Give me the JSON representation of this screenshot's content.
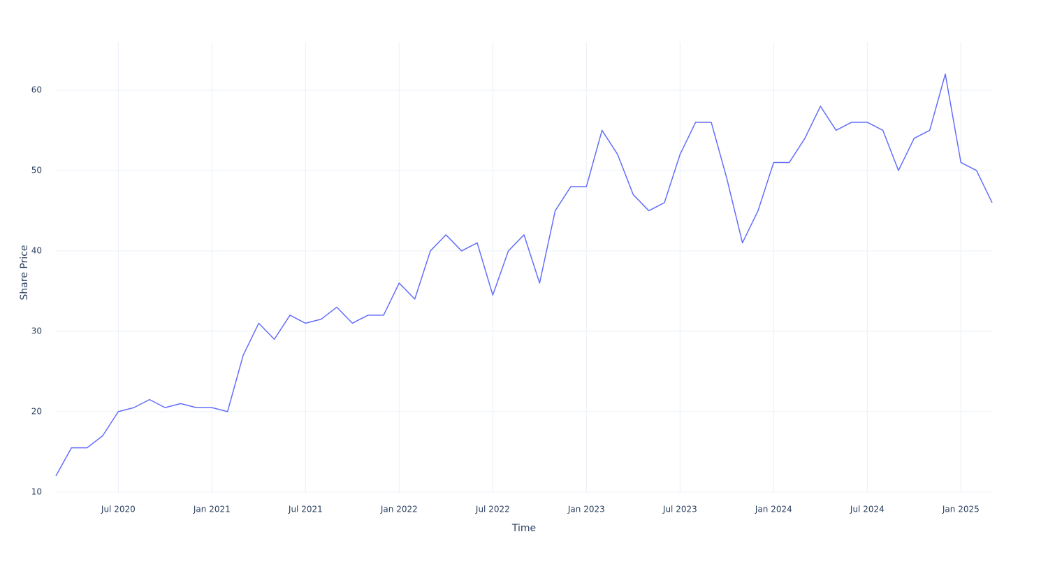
{
  "chart_data": {
    "type": "line",
    "x_label": "Time",
    "y_label": "Share Price",
    "x": [
      "2020-03",
      "2020-04",
      "2020-05",
      "2020-06",
      "2020-07",
      "2020-08",
      "2020-09",
      "2020-10",
      "2020-11",
      "2020-12",
      "2021-01",
      "2021-02",
      "2021-03",
      "2021-04",
      "2021-05",
      "2021-06",
      "2021-07",
      "2021-08",
      "2021-09",
      "2021-10",
      "2021-11",
      "2021-12",
      "2022-01",
      "2022-02",
      "2022-03",
      "2022-04",
      "2022-05",
      "2022-06",
      "2022-07",
      "2022-08",
      "2022-09",
      "2022-10",
      "2022-11",
      "2022-12",
      "2023-01",
      "2023-02",
      "2023-03",
      "2023-04",
      "2023-05",
      "2023-06",
      "2023-07",
      "2023-08",
      "2023-09",
      "2023-10",
      "2023-11",
      "2023-12",
      "2024-01",
      "2024-02",
      "2024-03",
      "2024-04",
      "2024-05",
      "2024-06",
      "2024-07",
      "2024-08",
      "2024-09",
      "2024-10",
      "2024-11",
      "2024-12",
      "2025-01",
      "2025-02",
      "2025-03"
    ],
    "values": [
      12,
      15.5,
      15.5,
      17,
      20,
      20.5,
      21.5,
      20.5,
      21,
      20.5,
      20.5,
      20,
      27,
      31,
      29,
      32,
      31,
      31.5,
      33,
      31,
      32,
      32,
      36,
      34,
      40,
      42,
      40,
      41,
      34.5,
      40,
      42,
      36,
      45,
      48,
      48,
      55,
      52,
      47,
      45,
      46,
      52,
      56,
      56,
      49,
      41,
      45,
      51,
      51,
      54,
      58,
      55,
      56,
      56,
      55,
      50,
      54,
      55,
      62,
      51,
      50,
      46
    ],
    "color": "#636efa",
    "xlim": [
      "2020-03",
      "2025-03"
    ],
    "xticks": [
      {
        "value": "2020-07",
        "label": "Jul 2020"
      },
      {
        "value": "2021-01",
        "label": "Jan 2021"
      },
      {
        "value": "2021-07",
        "label": "Jul 2021"
      },
      {
        "value": "2022-01",
        "label": "Jan 2022"
      },
      {
        "value": "2022-07",
        "label": "Jul 2022"
      },
      {
        "value": "2023-01",
        "label": "Jan 2023"
      },
      {
        "value": "2023-07",
        "label": "Jul 2023"
      },
      {
        "value": "2024-01",
        "label": "Jan 2024"
      },
      {
        "value": "2024-07",
        "label": "Jul 2024"
      },
      {
        "value": "2025-01",
        "label": "Jan 2025"
      }
    ],
    "ylim": [
      9.9,
      66
    ],
    "yticks": [
      10,
      20,
      30,
      40,
      50,
      60
    ],
    "grid": true
  }
}
